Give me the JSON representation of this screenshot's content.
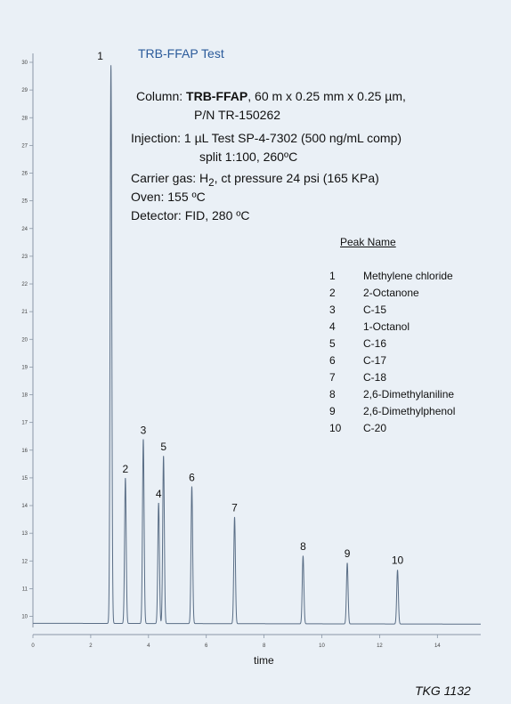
{
  "title": "TRB-FFAP Test",
  "conditions": {
    "column_prefix": "Column: ",
    "column_name": "TRB-FFAP",
    "column_rest": ", 60 m x 0.25 mm x 0.25 µm,",
    "pn": "P/N TR-150262",
    "injection": "Injection: 1 µL Test SP-4-7302 (500 ng/mL comp)",
    "split": "split 1:100, 260ºC",
    "carrier_prefix": "Carrier gas: H",
    "carrier_sub": "2",
    "carrier_rest": ", ct pressure 24 psi (165 KPa)",
    "oven": "Oven: 155 ºC",
    "detector": "Detector: FID, 280 ºC"
  },
  "peak_table": {
    "header": "Peak Name",
    "rows": [
      {
        "num": "1",
        "name": "Methylene chloride"
      },
      {
        "num": "2",
        "name": "2-Octanone"
      },
      {
        "num": "3",
        "name": "C-15"
      },
      {
        "num": "4",
        "name": "1-Octanol"
      },
      {
        "num": "5",
        "name": "C-16"
      },
      {
        "num": "6",
        "name": "C-17"
      },
      {
        "num": "7",
        "name": "C-18"
      },
      {
        "num": "8",
        "name": "2,6-Dimethylaniline"
      },
      {
        "num": "9",
        "name": "2,6-Dimethylphenol"
      },
      {
        "num": "10",
        "name": "C-20"
      }
    ]
  },
  "footer": "TKG 1132",
  "chart_data": {
    "type": "line",
    "title": "TRB-FFAP Test",
    "xlabel": "time",
    "ylabel": "",
    "xlim": [
      0,
      15.5
    ],
    "ylim": [
      9.6,
      30
    ],
    "x_ticks": [
      0,
      2,
      4,
      6,
      8,
      10,
      12,
      14
    ],
    "y_ticks": [
      10,
      11,
      12,
      13,
      14,
      15,
      16,
      17,
      18,
      19,
      20,
      21,
      22,
      23,
      24,
      25,
      26,
      27,
      28,
      29,
      30
    ],
    "grid": false,
    "baseline": 9.75,
    "series": [
      {
        "peaks": [
          {
            "label": "1",
            "rt": 2.7,
            "height": 29.9
          },
          {
            "label": "2",
            "rt": 3.2,
            "height": 15.0
          },
          {
            "label": "3",
            "rt": 3.82,
            "height": 16.4
          },
          {
            "label": "4",
            "rt": 4.35,
            "height": 14.1
          },
          {
            "label": "5",
            "rt": 4.52,
            "height": 15.8
          },
          {
            "label": "6",
            "rt": 5.5,
            "height": 14.7
          },
          {
            "label": "7",
            "rt": 6.98,
            "height": 13.6
          },
          {
            "label": "8",
            "rt": 9.35,
            "height": 12.2
          },
          {
            "label": "9",
            "rt": 10.88,
            "height": 11.95
          },
          {
            "label": "10",
            "rt": 12.62,
            "height": 11.7
          }
        ]
      }
    ],
    "colors": {
      "trace": "#5a6e86",
      "axis": "#8a96a6",
      "text": "#111111"
    }
  }
}
